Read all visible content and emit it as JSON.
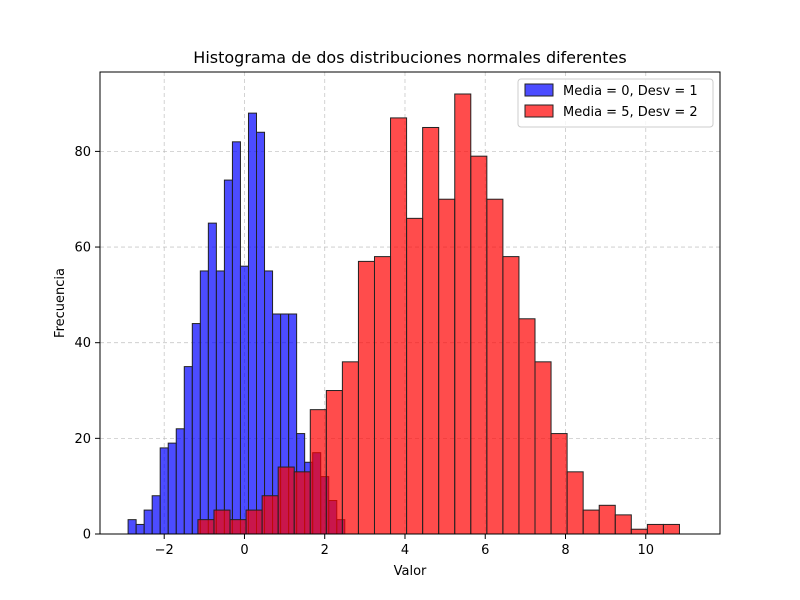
{
  "chart_data": {
    "type": "bar",
    "title": "Histograma de dos distribuciones normales diferentes",
    "xlabel": "Valor",
    "ylabel": "Frecuencia",
    "xlim": [
      -3.6,
      11.85
    ],
    "ylim": [
      0,
      96.6
    ],
    "xticks": [
      -2,
      0,
      2,
      4,
      6,
      8,
      10
    ],
    "xtick_labels": [
      "−2",
      "0",
      "2",
      "4",
      "6",
      "8",
      "10"
    ],
    "yticks": [
      0,
      20,
      40,
      60,
      80
    ],
    "ytick_labels": [
      "0",
      "20",
      "40",
      "60",
      "80"
    ],
    "grid": true,
    "legend_position": "top-right",
    "series": [
      {
        "name": "Media = 0, Desv = 1",
        "color": "#0000ff",
        "edge_color": "#222222",
        "bin_start": -2.9,
        "bin_width": 0.2,
        "values": [
          3,
          2,
          5,
          8,
          18,
          19,
          22,
          35,
          44,
          55,
          65,
          55,
          74,
          82,
          56,
          88,
          84,
          55,
          46,
          46,
          46,
          21,
          15,
          17,
          12,
          7,
          3,
          0,
          0,
          0,
          0,
          0,
          0,
          0,
          0
        ]
      },
      {
        "name": "Media = 5, Desv = 2",
        "color": "#ff0000",
        "edge_color": "#222222",
        "bin_start": -1.96,
        "bin_width": 0.4,
        "values": [
          0,
          0,
          3,
          5,
          3,
          5,
          8,
          14,
          13,
          26,
          30,
          36,
          57,
          58,
          87,
          66,
          85,
          70,
          92,
          79,
          70,
          58,
          45,
          36,
          21,
          13,
          5,
          6,
          4,
          1,
          2,
          2
        ]
      }
    ]
  }
}
